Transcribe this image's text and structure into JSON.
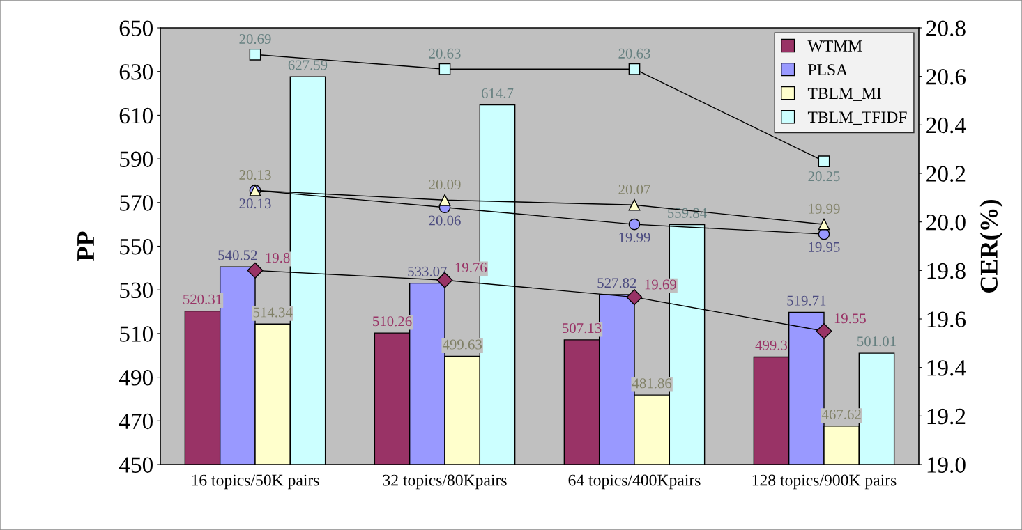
{
  "chart_data": {
    "type": "bar",
    "ylabel": "PP",
    "y2label": "CER(%)",
    "categories": [
      "16 topics/50K pairs",
      "32 topics/80Kpairs",
      "64 topics/400Kpairs",
      "128 topics/900K pairs"
    ],
    "series": [
      {
        "name": "WTMM",
        "color": "#993366",
        "values": [
          520.31,
          510.26,
          507.13,
          499.3
        ]
      },
      {
        "name": "PLSA",
        "color": "#9999ff",
        "values": [
          540.52,
          533.07,
          527.82,
          519.71
        ]
      },
      {
        "name": "TBLM_MI",
        "color": "#ffffcc",
        "values": [
          514.34,
          499.63,
          481.86,
          467.62
        ]
      },
      {
        "name": "TBLM_TFIDF",
        "color": "#ccffff",
        "values": [
          627.59,
          614.7,
          559.84,
          501.01
        ]
      },
      {
        "type": "line",
        "axis": "y2",
        "marker": "diamond",
        "color": "#993366",
        "values": [
          19.8,
          19.76,
          19.69,
          19.55
        ]
      },
      {
        "type": "line",
        "axis": "y2",
        "marker": "circle",
        "color": "#9999ff",
        "values": [
          20.13,
          20.06,
          19.99,
          19.95
        ]
      },
      {
        "type": "line",
        "axis": "y2",
        "marker": "triangle",
        "color": "#ffffcc",
        "values": [
          20.13,
          20.09,
          20.07,
          19.99
        ]
      },
      {
        "type": "line",
        "axis": "y2",
        "marker": "square",
        "color": "#ccffff",
        "values": [
          20.69,
          20.63,
          20.63,
          20.25
        ]
      }
    ],
    "ylim": [
      450,
      650
    ],
    "yticks": [
      450,
      470,
      490,
      510,
      530,
      550,
      570,
      590,
      610,
      630,
      650
    ],
    "y2lim": [
      19.0,
      20.8
    ],
    "y2ticks": [
      {
        "value": 19.0,
        "label": "19.0"
      },
      {
        "value": 19.2,
        "label": "19.2"
      },
      {
        "value": 19.4,
        "label": "19.4"
      },
      {
        "value": 19.6,
        "label": "19.6"
      },
      {
        "value": 19.8,
        "label": "19.8"
      },
      {
        "value": 20.0,
        "label": "20.0"
      },
      {
        "value": 20.2,
        "label": "20.2"
      },
      {
        "value": 20.4,
        "label": "20.4"
      },
      {
        "value": 20.6,
        "label": "20.6"
      },
      {
        "value": 20.8,
        "label": "20.8"
      }
    ],
    "data_labels": true,
    "legend": "top right",
    "grid": false
  }
}
